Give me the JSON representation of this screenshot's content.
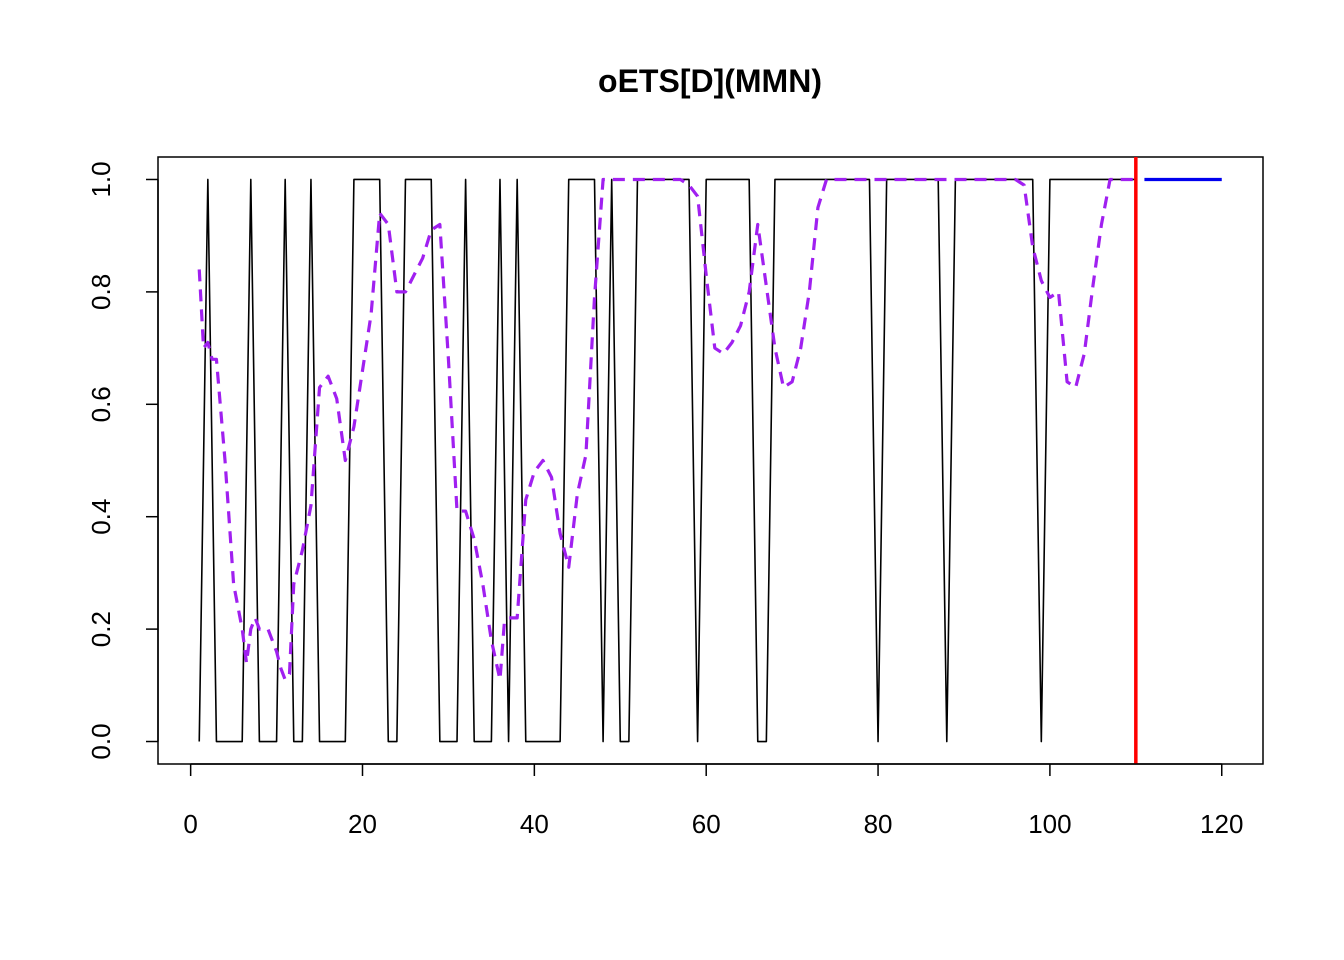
{
  "chart_data": {
    "type": "line",
    "title": "oETS[D](MMN)",
    "xlabel": "",
    "ylabel": "",
    "xlim": [
      -3.8,
      124.8
    ],
    "ylim": [
      -0.04,
      1.04
    ],
    "x_ticks": [
      0,
      20,
      40,
      60,
      80,
      100,
      120
    ],
    "y_ticks": [
      0.0,
      0.2,
      0.4,
      0.6,
      0.8,
      1.0
    ],
    "x_tick_labels": [
      "0",
      "20",
      "40",
      "60",
      "80",
      "100",
      "120"
    ],
    "y_tick_labels": [
      "0.0",
      "0.2",
      "0.4",
      "0.6",
      "0.8",
      "1.0"
    ],
    "grid": false,
    "legend": "none",
    "vertical_line": {
      "x": 110,
      "color": "#ff0000"
    },
    "series": [
      {
        "role": "actuals",
        "color": "#000000",
        "style": "solid",
        "x": [
          1,
          2,
          3,
          4,
          5,
          6,
          7,
          8,
          9,
          10,
          11,
          12,
          13,
          14,
          15,
          16,
          17,
          18,
          19,
          20,
          21,
          22,
          23,
          24,
          25,
          26,
          27,
          28,
          29,
          30,
          31,
          32,
          33,
          34,
          35,
          36,
          37,
          38,
          39,
          40,
          41,
          42,
          43,
          44,
          45,
          46,
          47,
          48,
          49,
          50,
          51,
          52,
          53,
          54,
          55,
          56,
          57,
          58,
          59,
          60,
          61,
          62,
          63,
          64,
          65,
          66,
          67,
          68,
          69,
          70,
          71,
          72,
          73,
          74,
          75,
          76,
          77,
          78,
          79,
          80,
          81,
          82,
          83,
          84,
          85,
          86,
          87,
          88,
          89,
          90,
          91,
          92,
          93,
          94,
          95,
          96,
          97,
          98,
          99,
          100,
          101,
          102,
          103,
          104,
          105,
          106,
          107,
          108,
          109,
          110
        ],
        "values": [
          0,
          1,
          0,
          0,
          0,
          0,
          1,
          0,
          0,
          0,
          1,
          0,
          0,
          1,
          0,
          0,
          0,
          0,
          1,
          1,
          1,
          1,
          0,
          0,
          1,
          1,
          1,
          1,
          0,
          0,
          0,
          1,
          0,
          0,
          0,
          1,
          0,
          1,
          0,
          0,
          0,
          0,
          0,
          1,
          1,
          1,
          1,
          0,
          1,
          0,
          0,
          1,
          1,
          1,
          1,
          1,
          1,
          1,
          0,
          1,
          1,
          1,
          1,
          1,
          1,
          0,
          0,
          1,
          1,
          1,
          1,
          1,
          1,
          1,
          1,
          1,
          1,
          1,
          1,
          0,
          1,
          1,
          1,
          1,
          1,
          1,
          1,
          0,
          1,
          1,
          1,
          1,
          1,
          1,
          1,
          1,
          1,
          1,
          0,
          1,
          1,
          1,
          1,
          1,
          1,
          1,
          1,
          1,
          1,
          1
        ]
      },
      {
        "role": "fitted",
        "color": "#a020f0",
        "style": "dashed",
        "x": [
          1,
          1.5,
          2,
          2.5,
          3,
          4,
          5,
          6,
          6.5,
          7,
          7.5,
          8,
          9,
          10,
          10.5,
          11,
          11.5,
          12,
          13,
          14,
          15,
          16,
          17,
          18,
          19,
          20,
          21,
          22,
          23,
          24,
          25,
          26,
          27,
          28,
          29,
          30,
          31,
          32,
          33,
          34,
          35,
          36,
          36.5,
          37,
          38,
          39,
          40,
          41,
          42,
          43,
          44,
          45,
          46,
          47,
          48,
          49,
          50,
          51,
          52,
          53,
          54,
          55,
          56,
          57,
          58,
          59,
          60,
          61,
          62,
          63,
          64,
          65,
          66,
          67,
          68,
          69,
          70,
          71,
          72,
          73,
          74,
          75,
          76,
          77,
          78,
          79,
          80,
          81,
          82,
          83,
          84,
          85,
          86,
          87,
          88,
          89,
          90,
          91,
          92,
          93,
          94,
          95,
          96,
          97,
          98,
          99,
          100,
          101,
          102,
          103,
          104,
          105,
          106,
          107,
          108,
          109,
          110
        ],
        "values": [
          0.84,
          0.7,
          0.71,
          0.68,
          0.68,
          0.5,
          0.28,
          0.2,
          0.14,
          0.2,
          0.22,
          0.2,
          0.2,
          0.16,
          0.13,
          0.11,
          0.12,
          0.28,
          0.34,
          0.42,
          0.63,
          0.65,
          0.61,
          0.5,
          0.56,
          0.66,
          0.76,
          0.94,
          0.92,
          0.8,
          0.8,
          0.83,
          0.86,
          0.91,
          0.92,
          0.68,
          0.41,
          0.41,
          0.36,
          0.28,
          0.18,
          0.11,
          0.21,
          0.22,
          0.22,
          0.43,
          0.48,
          0.5,
          0.47,
          0.37,
          0.31,
          0.44,
          0.51,
          0.79,
          1.0,
          1.0,
          1.0,
          1.0,
          1.0,
          1.0,
          1.0,
          1.0,
          1.0,
          1.0,
          0.99,
          0.97,
          0.83,
          0.7,
          0.69,
          0.71,
          0.74,
          0.8,
          0.92,
          0.81,
          0.7,
          0.63,
          0.64,
          0.7,
          0.8,
          0.95,
          1.0,
          1.0,
          1.0,
          1.0,
          1.0,
          1.0,
          1.0,
          1.0,
          1.0,
          1.0,
          1.0,
          1.0,
          1.0,
          1.0,
          1.0,
          1.0,
          1.0,
          1.0,
          1.0,
          1.0,
          1.0,
          1.0,
          1.0,
          0.99,
          0.88,
          0.82,
          0.79,
          0.8,
          0.64,
          0.63,
          0.69,
          0.81,
          0.92,
          1.0,
          1.0,
          1.0,
          1.0
        ]
      },
      {
        "role": "forecast",
        "color": "#0000ee",
        "style": "solid",
        "x": [
          111,
          112,
          113,
          114,
          115,
          116,
          117,
          118,
          119,
          120
        ],
        "values": [
          1,
          1,
          1,
          1,
          1,
          1,
          1,
          1,
          1,
          1
        ]
      }
    ]
  }
}
